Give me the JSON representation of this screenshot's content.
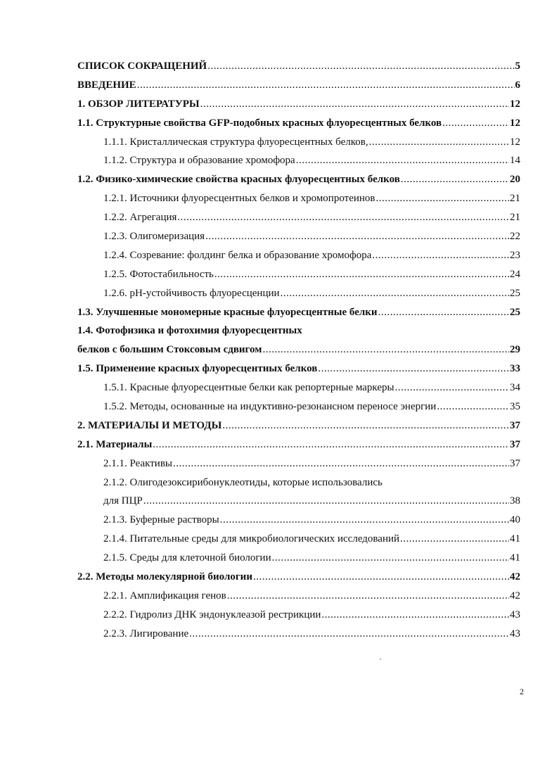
{
  "toc": [
    {
      "title": "СПИСОК СОКРАЩЕНИЙ",
      "page": "5",
      "level": 1
    },
    {
      "title": "ВВЕДЕНИЕ",
      "page": "6",
      "level": 1
    },
    {
      "title": "1. ОБЗОР ЛИТЕРАТУРЫ",
      "page": "12",
      "level": 1
    },
    {
      "title": "1.1. Структурные свойства GFP-подобных красных флуоресцентных белков",
      "page": "12",
      "level": 2
    },
    {
      "title": "1.1.1. Кристаллическая структура флуоресцентных белков,",
      "page": "12",
      "level": 3
    },
    {
      "title": "1.1.2. Структура и образование хромофора",
      "page": "14",
      "level": 3
    },
    {
      "title": "1.2. Физико-химические свойства красных флуоресцентных белков",
      "page": "20",
      "level": 2
    },
    {
      "title": "1.2.1. Источники флуоресцентных белков и хромопротеинов",
      "page": "21",
      "level": 3
    },
    {
      "title": "1.2.2. Агрегация",
      "page": "21",
      "level": 3
    },
    {
      "title": "1.2.3. Олигомеризация",
      "page": "22",
      "level": 3
    },
    {
      "title": "1.2.4. Созревание: фолдинг белка и образование хромофора",
      "page": "23",
      "level": 3
    },
    {
      "title": "1.2.5. Фотостабильность",
      "page": "24",
      "level": 3
    },
    {
      "title": "1.2.6. pH-устойчивость флуоресценции",
      "page": "25",
      "level": 3
    },
    {
      "title": "1.3. Улучшенные мономерные красные флуоресцентные белки",
      "page": "25",
      "level": 2
    },
    {
      "title": "1.4. Фотофизика и фотохимия флуоресцентных",
      "title_cont": "белков с большим Стоксовым сдвигом",
      "page": "29",
      "level": 2
    },
    {
      "title": "1.5. Применение красных флуоресцентных белков",
      "page": "33",
      "level": 2
    },
    {
      "title": "1.5.1. Красные флуоресцентные белки как репортерные маркеры",
      "page": "34",
      "level": 3
    },
    {
      "title": "1.5.2. Методы, основанные на индуктивно-резонансном переносе энергии",
      "page": "35",
      "level": 3
    },
    {
      "title": "2. МАТЕРИАЛЫ И МЕТОДЫ",
      "page": "37",
      "level": 1
    },
    {
      "title": "2.1. Материалы",
      "page": "37",
      "level": 2
    },
    {
      "title": "2.1.1. Реактивы",
      "page": "37",
      "level": 3
    },
    {
      "title": "2.1.2. Олигодезоксирибонуклеотиды, которые использовались",
      "title_cont": "для ПЦР",
      "page": "38",
      "level": 3
    },
    {
      "title": "2.1.3. Буферные растворы",
      "page": "40",
      "level": 3
    },
    {
      "title": "2.1.4. Питательные среды для микробиологических исследований",
      "page": "41",
      "level": 3
    },
    {
      "title": "2.1.5. Среды для клеточной биологии",
      "page": "41",
      "level": 3
    },
    {
      "title": "2.2. Методы молекулярной биологии",
      "page": "42",
      "level": 2
    },
    {
      "title": "2.2.1. Амплификация генов",
      "page": "42",
      "level": 3
    },
    {
      "title": "2.2.2. Гидролиз ДНК эндонуклеазой рестрикции",
      "page": "43",
      "level": 3
    },
    {
      "title": "2.2.3. Лигирование",
      "page": "43",
      "level": 3
    }
  ],
  "page_number": "2"
}
